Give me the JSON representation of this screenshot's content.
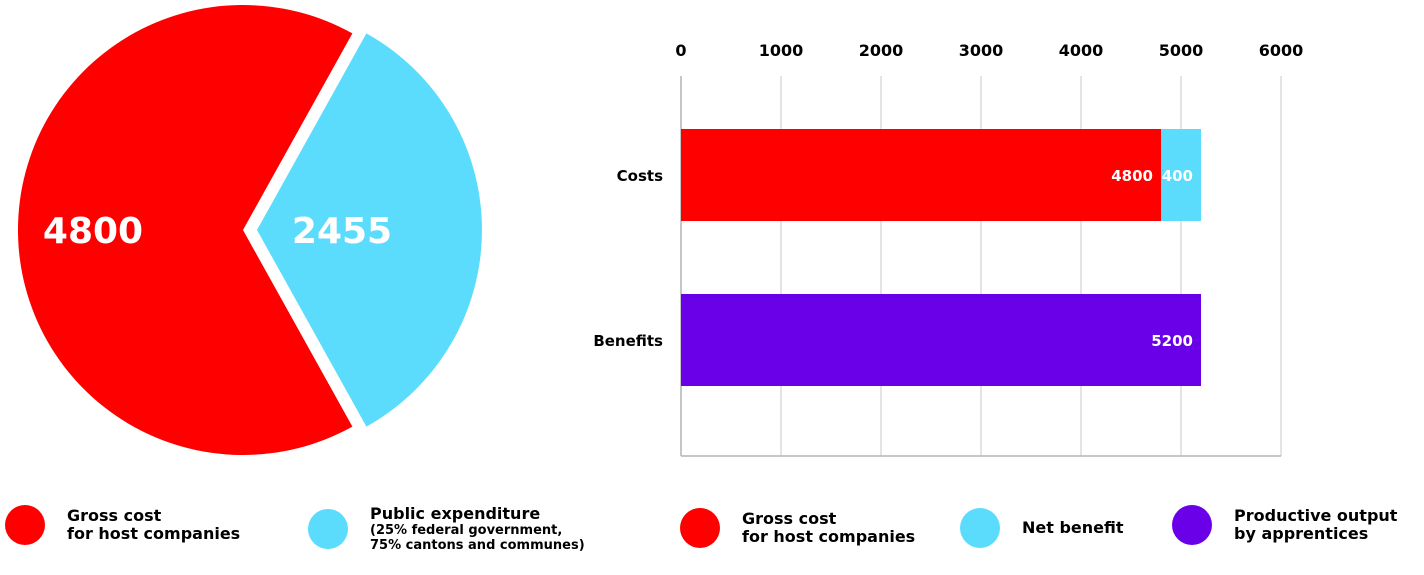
{
  "chart_data": [
    {
      "type": "pie",
      "slices": [
        {
          "label": "Gross cost for host companies",
          "value": 4800,
          "color": "#ff0000"
        },
        {
          "label": "Public expenditure",
          "value": 2455,
          "color": "#5cdcfc"
        }
      ]
    },
    {
      "type": "bar",
      "orientation": "horizontal",
      "stacked": true,
      "categories": [
        "Costs",
        "Benefits"
      ],
      "series": [
        {
          "name": "Gross cost for host companies",
          "values": [
            4800,
            null
          ],
          "color": "#ff0000"
        },
        {
          "name": "Net benefit",
          "values": [
            400,
            null
          ],
          "color": "#5cdcfc"
        },
        {
          "name": "Productive output by apprentices",
          "values": [
            null,
            5200
          ],
          "color": "#6a00e8"
        }
      ],
      "xlim": [
        0,
        6000
      ],
      "xticks": [
        "0",
        "1000",
        "2000",
        "3000",
        "4000",
        "5000",
        "6000"
      ],
      "axis_position": "top",
      "grid": true
    }
  ],
  "legend_left": [
    {
      "line1": "Gross cost",
      "line2": "for host companies",
      "sub1": "",
      "sub2": "",
      "color": "#ff0000"
    },
    {
      "line1": "Public expenditure",
      "line2": "",
      "sub1": "(25% federal government,",
      "sub2": "75% cantons and communes)",
      "color": "#5cdcfc"
    }
  ],
  "legend_right": [
    {
      "line1": "Gross cost",
      "line2": "for host companies",
      "color": "#ff0000"
    },
    {
      "line1": "Net benefit",
      "line2": "",
      "color": "#5cdcfc"
    },
    {
      "line1": "Productive output",
      "line2": "by apprentices",
      "color": "#6a00e8"
    }
  ]
}
